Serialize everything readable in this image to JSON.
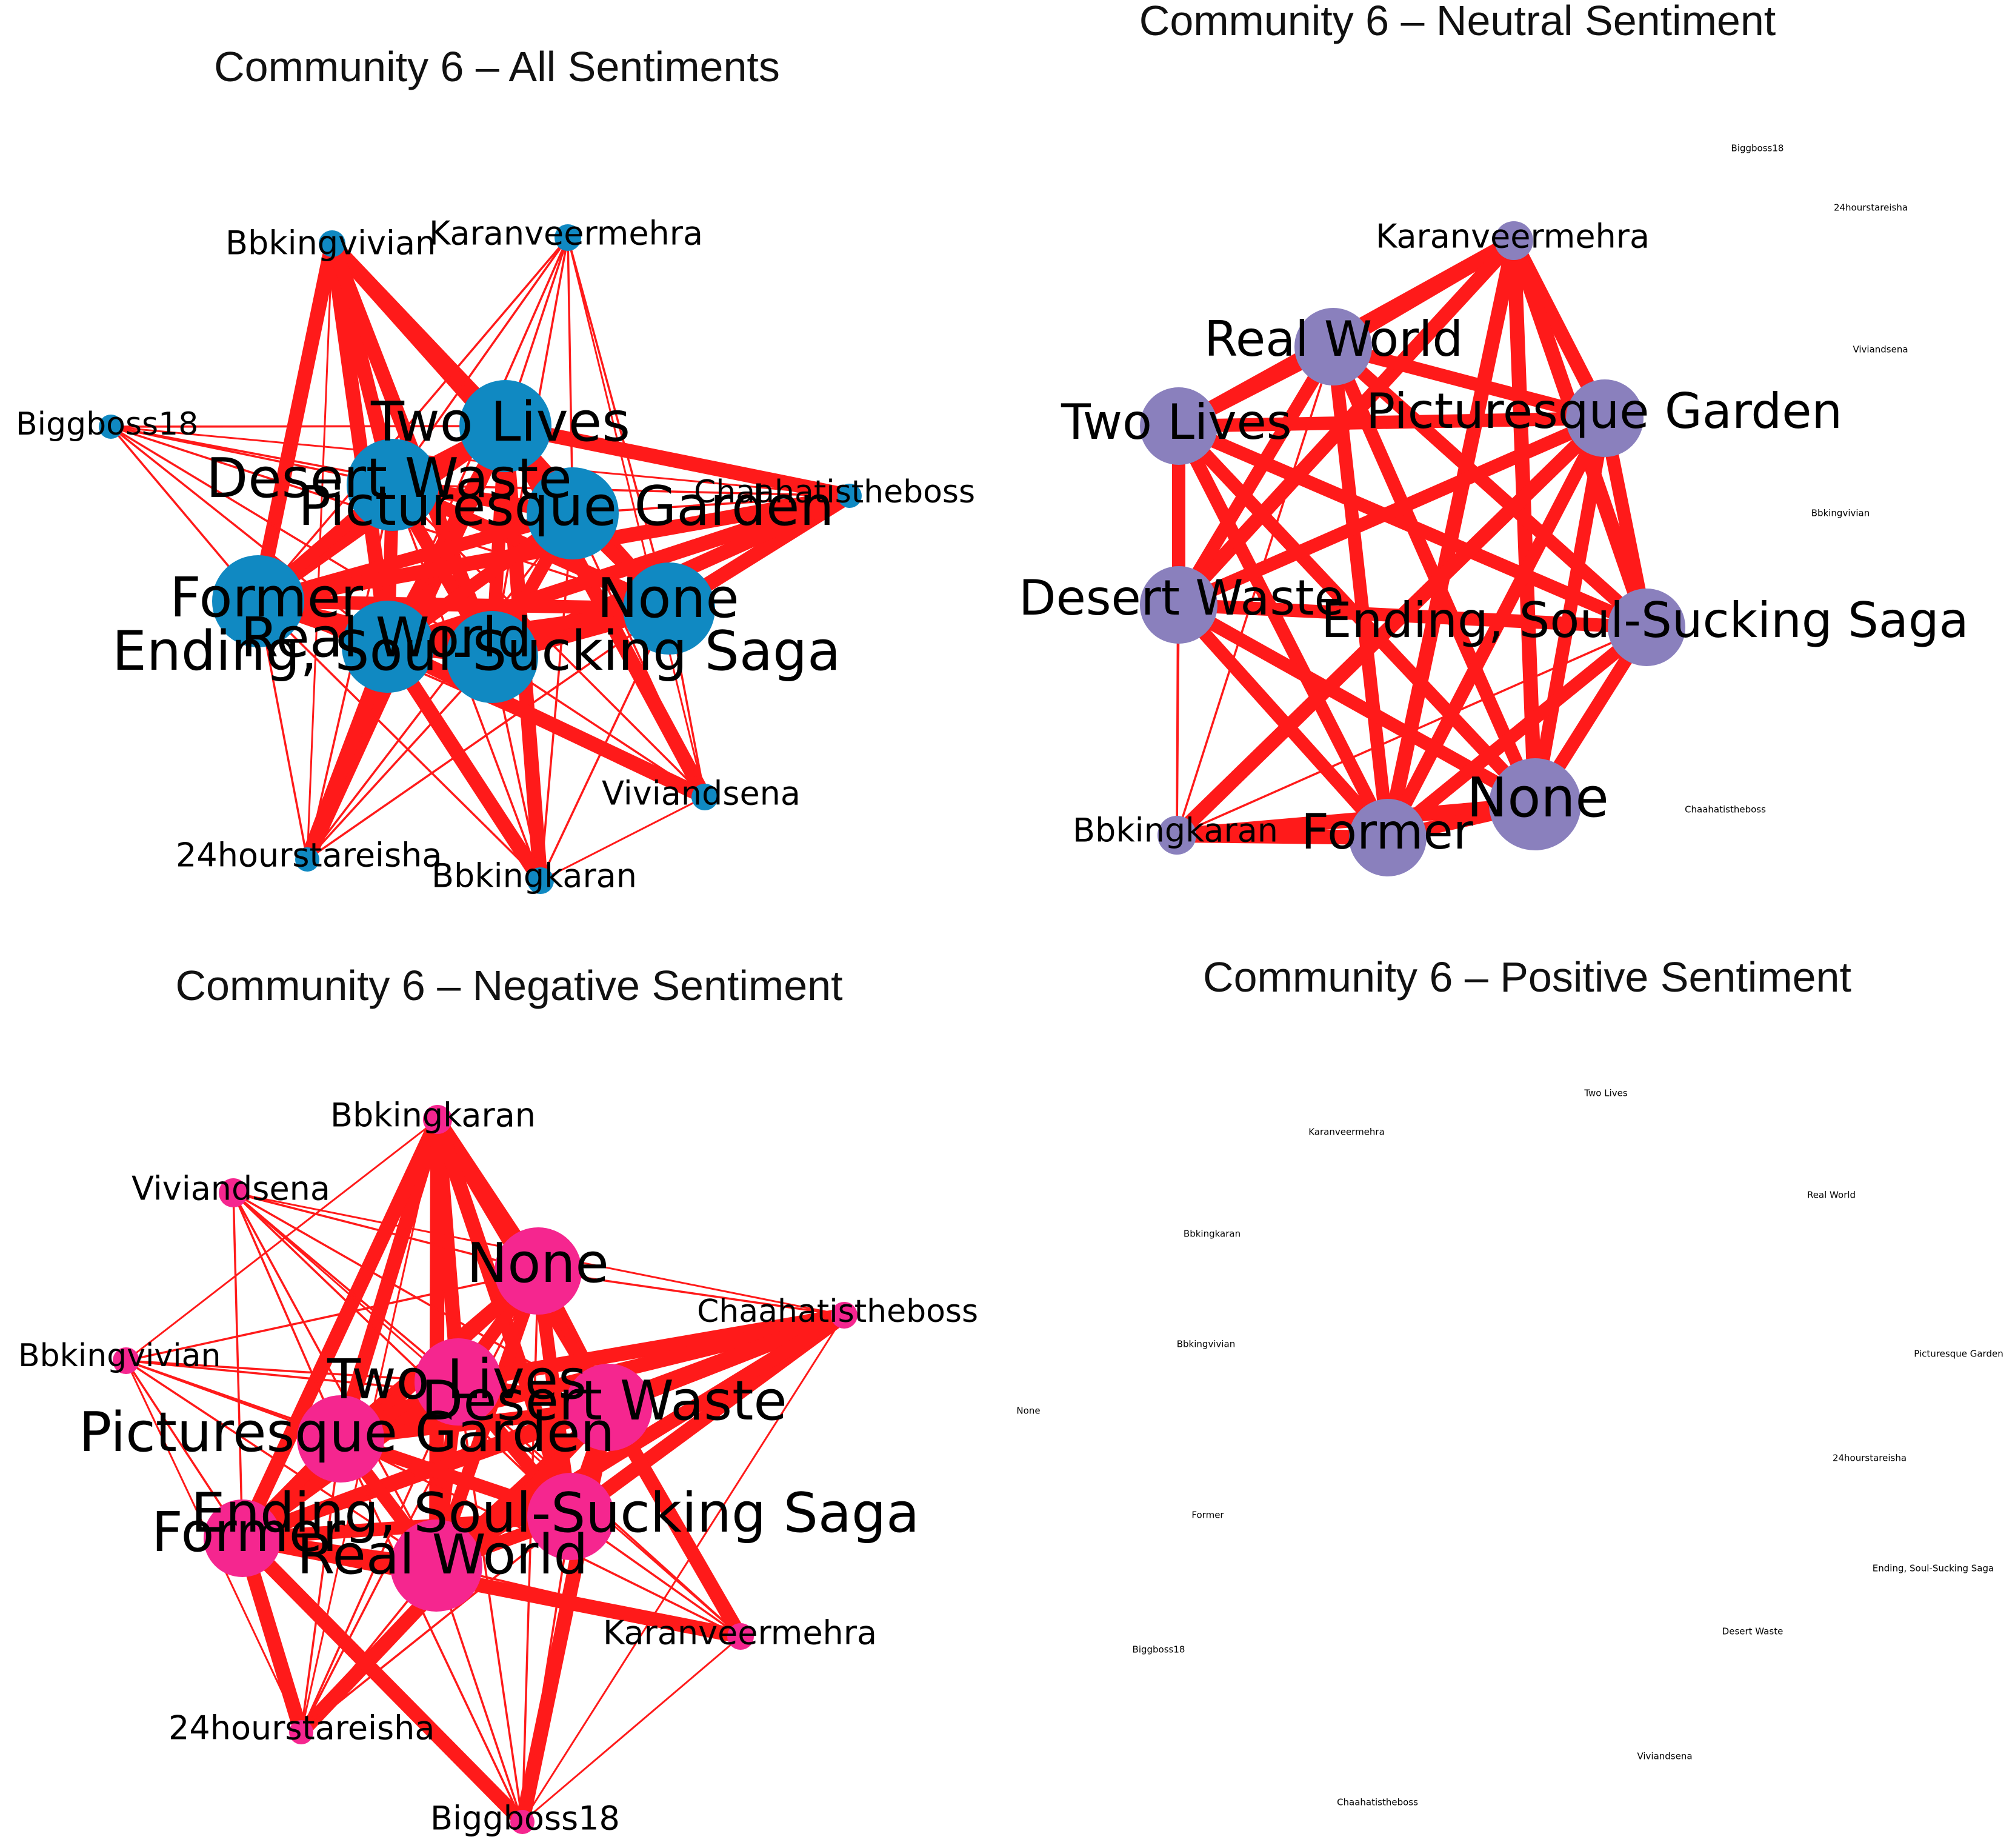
{
  "figure": {
    "edge_color": "#ff1a1a",
    "panels": [
      {
        "id": "all",
        "title": "Community 6 – All Sentiments",
        "node_color": "#1089c2",
        "nodes": [
          {
            "label": "Bbkingvivian",
            "size": "small"
          },
          {
            "label": "Karanveermehra",
            "size": "small"
          },
          {
            "label": "Biggboss18",
            "size": "small"
          },
          {
            "label": "Two Lives",
            "size": "large"
          },
          {
            "label": "Desert Waste",
            "size": "large"
          },
          {
            "label": "Picturesque Garden",
            "size": "large"
          },
          {
            "label": "Chaahatistheboss",
            "size": "small"
          },
          {
            "label": "Former",
            "size": "large"
          },
          {
            "label": "None",
            "size": "large"
          },
          {
            "label": "Real World",
            "size": "large"
          },
          {
            "label": "Ending, Soul-Sucking Saga",
            "size": "large"
          },
          {
            "label": "Viviandsena",
            "size": "small"
          },
          {
            "label": "24hourstareisha",
            "size": "small"
          },
          {
            "label": "Bbkingkaran",
            "size": "small"
          }
        ]
      },
      {
        "id": "neutral",
        "title": "Community 6 – Neutral Sentiment",
        "node_color": "#8a80bd",
        "nodes": [
          {
            "label": "Karanveermehra",
            "size": "small"
          },
          {
            "label": "Real World",
            "size": "large"
          },
          {
            "label": "Two Lives",
            "size": "large"
          },
          {
            "label": "Picturesque Garden",
            "size": "large"
          },
          {
            "label": "Desert Waste",
            "size": "large"
          },
          {
            "label": "Ending, Soul-Sucking Saga",
            "size": "large"
          },
          {
            "label": "Bbkingkaran",
            "size": "small"
          },
          {
            "label": "Former",
            "size": "large"
          },
          {
            "label": "None",
            "size": "large"
          }
        ],
        "isolated_labels": [
          "Biggboss18",
          "24hourstareisha",
          "Viviandsena",
          "Bbkingvivian",
          "Chaahatistheboss"
        ]
      },
      {
        "id": "negative",
        "title": "Community 6 – Negative Sentiment",
        "node_color": "#f5268f",
        "nodes": [
          {
            "label": "Bbkingkaran",
            "size": "small"
          },
          {
            "label": "Viviandsena",
            "size": "small"
          },
          {
            "label": "None",
            "size": "large"
          },
          {
            "label": "Chaahatistheboss",
            "size": "small"
          },
          {
            "label": "Bbkingvivian",
            "size": "small"
          },
          {
            "label": "Two Lives",
            "size": "large"
          },
          {
            "label": "Desert Waste",
            "size": "large"
          },
          {
            "label": "Picturesque Garden",
            "size": "large"
          },
          {
            "label": "Ending, Soul-Sucking Saga",
            "size": "large"
          },
          {
            "label": "Former",
            "size": "large"
          },
          {
            "label": "Real World",
            "size": "large"
          },
          {
            "label": "Karanveermehra",
            "size": "small"
          },
          {
            "label": "24hourstareisha",
            "size": "small"
          },
          {
            "label": "Biggboss18",
            "size": "small"
          }
        ]
      },
      {
        "id": "positive",
        "title": "Community 6 – Positive Sentiment",
        "node_color": "#ffffff",
        "nodes": [],
        "isolated_labels": [
          "Two Lives",
          "Karanveermehra",
          "Real World",
          "Bbkingkaran",
          "Bbkingvivian",
          "Picturesque Garden",
          "None",
          "24hourstareisha",
          "Former",
          "Ending, Soul-Sucking Saga",
          "Biggboss18",
          "Desert Waste",
          "Viviandsena",
          "Chaahatistheboss"
        ]
      }
    ]
  }
}
